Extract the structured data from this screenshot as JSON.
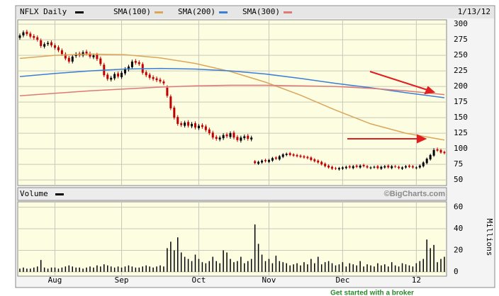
{
  "chart_data": [
    {
      "type": "candlestick",
      "title": "NFLX Daily",
      "date": "1/13/12",
      "up_color": "#000000",
      "down_color": "#c00000",
      "categories": [
        null,
        null,
        null,
        null,
        null,
        null,
        null,
        null,
        null,
        null,
        "Aug",
        null,
        null,
        null,
        null,
        null,
        null,
        null,
        null,
        null,
        null,
        null,
        null,
        null,
        null,
        null,
        null,
        null,
        null,
        "Sep",
        null,
        null,
        null,
        null,
        null,
        null,
        null,
        null,
        null,
        null,
        null,
        null,
        null,
        null,
        null,
        null,
        null,
        null,
        null,
        null,
        null,
        "Oct",
        null,
        null,
        null,
        null,
        null,
        null,
        null,
        null,
        null,
        null,
        null,
        null,
        null,
        null,
        null,
        null,
        null,
        null,
        null,
        "Nov",
        null,
        null,
        null,
        null,
        null,
        null,
        null,
        null,
        null,
        null,
        null,
        null,
        null,
        null,
        null,
        null,
        null,
        null,
        null,
        null,
        "Dec",
        null,
        null,
        null,
        null,
        null,
        null,
        null,
        null,
        null,
        null,
        null,
        null,
        null,
        null,
        null,
        null,
        null,
        null,
        null,
        null,
        "12",
        null,
        null,
        null,
        null,
        null,
        null,
        null,
        null
      ],
      "open": [
        278,
        282,
        288,
        285,
        281,
        279,
        274,
        264,
        268,
        271,
        266,
        263,
        258,
        252,
        246,
        240,
        249,
        253,
        250,
        256,
        253,
        247,
        251,
        245,
        235,
        219,
        211,
        213,
        221,
        215,
        221,
        227,
        231,
        241,
        239,
        236,
        223,
        219,
        215,
        213,
        211,
        208,
        198,
        184,
        166,
        151,
        141,
        137,
        143,
        136,
        141,
        133,
        138,
        136,
        131,
        126,
        119,
        115,
        117,
        123,
        119,
        126,
        119,
        113,
        117,
        121,
        115,
        80,
        76,
        78,
        82,
        79,
        81,
        86,
        83,
        87,
        90,
        93,
        91,
        90,
        89,
        88,
        87,
        86,
        83,
        81,
        79,
        76,
        73,
        71,
        69,
        67,
        68,
        69,
        72,
        69,
        73,
        70,
        74,
        72,
        69,
        70,
        72,
        68,
        70,
        73,
        69,
        72,
        71,
        68,
        70,
        73,
        72,
        69,
        70,
        72,
        77,
        83,
        89,
        99,
        98,
        95
      ],
      "high": [
        285,
        290,
        291,
        288,
        284,
        282,
        277,
        271,
        273,
        274,
        269,
        266,
        261,
        255,
        249,
        251,
        255,
        256,
        258,
        259,
        256,
        253,
        254,
        248,
        238,
        222,
        217,
        223,
        224,
        225,
        231,
        235,
        243,
        244,
        242,
        239,
        226,
        222,
        218,
        216,
        214,
        211,
        202,
        187,
        169,
        154,
        144,
        145,
        146,
        143,
        144,
        140,
        141,
        139,
        134,
        129,
        122,
        121,
        125,
        126,
        128,
        129,
        122,
        121,
        123,
        124,
        121,
        82,
        81,
        83,
        84,
        84,
        87,
        88,
        90,
        93,
        94,
        95,
        93,
        92,
        91,
        90,
        89,
        88,
        85,
        83,
        81,
        78,
        75,
        73,
        71,
        71,
        72,
        73,
        74,
        74,
        75,
        75,
        76,
        74,
        72,
        73,
        74,
        73,
        74,
        75,
        74,
        74,
        73,
        72,
        74,
        75,
        74,
        72,
        75,
        80,
        86,
        92,
        101,
        102,
        100,
        97
      ],
      "low": [
        275,
        279,
        281,
        277,
        275,
        272,
        262,
        261,
        265,
        263,
        259,
        255,
        249,
        242,
        237,
        237,
        246,
        247,
        247,
        250,
        245,
        244,
        241,
        233,
        215,
        209,
        208,
        210,
        213,
        212,
        218,
        224,
        228,
        235,
        233,
        219,
        215,
        211,
        209,
        207,
        205,
        202,
        182,
        162,
        147,
        137,
        135,
        134,
        134,
        133,
        131,
        130,
        132,
        127,
        122,
        115,
        113,
        112,
        114,
        117,
        116,
        115,
        111,
        110,
        114,
        113,
        112,
        75,
        74,
        76,
        78,
        77,
        79,
        82,
        81,
        85,
        88,
        88,
        87,
        86,
        85,
        84,
        83,
        80,
        78,
        76,
        73,
        70,
        68,
        66,
        66,
        65,
        66,
        67,
        68,
        67,
        69,
        68,
        70,
        68,
        67,
        68,
        67,
        66,
        68,
        68,
        67,
        69,
        67,
        66,
        68,
        69,
        68,
        67,
        68,
        70,
        75,
        81,
        87,
        95,
        92,
        91
      ],
      "close": [
        282,
        287,
        284,
        280,
        278,
        275,
        265,
        268,
        270,
        266,
        262,
        258,
        252,
        245,
        240,
        248,
        252,
        250,
        255,
        253,
        248,
        250,
        244,
        236,
        218,
        212,
        214,
        220,
        216,
        222,
        228,
        232,
        240,
        238,
        236,
        222,
        218,
        214,
        212,
        210,
        208,
        205,
        185,
        165,
        150,
        140,
        138,
        142,
        137,
        140,
        134,
        137,
        135,
        130,
        125,
        118,
        116,
        118,
        122,
        120,
        125,
        118,
        114,
        118,
        120,
        116,
        118,
        77,
        79,
        81,
        80,
        82,
        85,
        84,
        88,
        91,
        92,
        90,
        89,
        88,
        87,
        86,
        85,
        82,
        80,
        78,
        75,
        72,
        70,
        68,
        68,
        69,
        70,
        71,
        70,
        72,
        71,
        73,
        72,
        70,
        70,
        71,
        69,
        71,
        72,
        70,
        72,
        71,
        69,
        70,
        72,
        71,
        70,
        70,
        73,
        78,
        84,
        90,
        98,
        97,
        94,
        93
      ],
      "series": [
        {
          "name": "SMA(100)",
          "color": "#dba65a",
          "x": [
            0,
            10,
            20,
            30,
            40,
            50,
            60,
            70,
            80,
            90,
            100,
            110,
            121
          ],
          "values": [
            245,
            250,
            252,
            251,
            246,
            237,
            224,
            207,
            186,
            162,
            140,
            125,
            114
          ]
        },
        {
          "name": "SMA(200)",
          "color": "#3a7fd5",
          "x": [
            0,
            10,
            20,
            30,
            40,
            50,
            60,
            70,
            80,
            90,
            100,
            110,
            121
          ],
          "values": [
            216,
            221,
            225,
            228,
            229,
            228,
            225,
            220,
            213,
            205,
            198,
            190,
            182
          ]
        },
        {
          "name": "SMA(300)",
          "color": "#e07878",
          "x": [
            0,
            10,
            20,
            30,
            40,
            50,
            60,
            70,
            80,
            90,
            100,
            110,
            121
          ],
          "values": [
            185,
            189,
            193,
            196,
            199,
            201,
            202,
            202,
            201,
            200,
            197,
            193,
            187
          ]
        }
      ],
      "ylim": [
        41,
        307
      ],
      "yticks": [
        300,
        275,
        250,
        225,
        200,
        175,
        150,
        125,
        100,
        75,
        50
      ],
      "grid": true
    },
    {
      "type": "bar",
      "title": "Volume",
      "ylabel": "Millions",
      "source": "©BigCharts.com",
      "color": "#000000",
      "values": [
        3,
        4,
        3,
        3,
        4,
        5,
        11,
        4,
        3,
        4,
        4,
        3,
        4,
        5,
        6,
        5,
        4,
        4,
        3,
        4,
        5,
        4,
        6,
        5,
        7,
        6,
        5,
        4,
        5,
        4,
        5,
        6,
        5,
        4,
        4,
        5,
        6,
        5,
        4,
        5,
        6,
        5,
        22,
        28,
        20,
        32,
        18,
        14,
        12,
        10,
        16,
        12,
        9,
        8,
        10,
        14,
        10,
        8,
        20,
        18,
        12,
        9,
        10,
        14,
        8,
        10,
        12,
        44,
        26,
        16,
        10,
        12,
        8,
        15,
        10,
        9,
        8,
        6,
        7,
        8,
        6,
        9,
        7,
        12,
        8,
        14,
        7,
        9,
        10,
        8,
        6,
        7,
        9,
        5,
        8,
        7,
        6,
        10,
        5,
        7,
        6,
        5,
        8,
        6,
        7,
        5,
        9,
        6,
        5,
        8,
        7,
        6,
        5,
        8,
        10,
        12,
        30,
        22,
        25,
        9,
        12,
        14
      ],
      "ylim": [
        -4,
        65
      ],
      "yticks": [
        60,
        40,
        20,
        0
      ],
      "grid": true
    }
  ],
  "footer": "Get started with a broker"
}
